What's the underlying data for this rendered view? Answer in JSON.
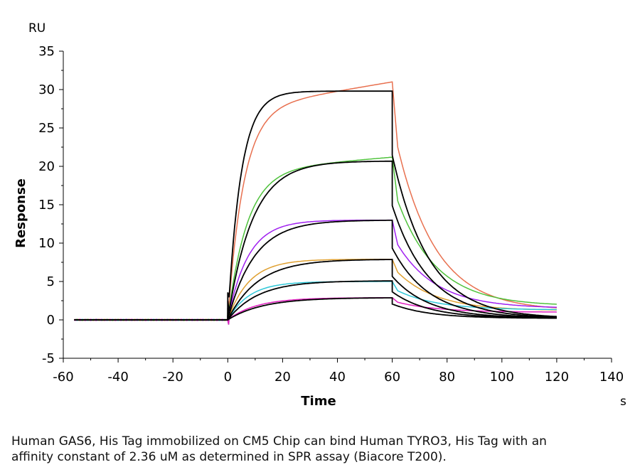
{
  "chart_data": {
    "type": "line",
    "ylabel": "Response",
    "xlabel": "Time",
    "y_unit": "RU",
    "x_unit": "s",
    "xlim": [
      -60,
      140
    ],
    "ylim": [
      -5,
      35
    ],
    "x_ticks": [
      "-60",
      "-40",
      "-20",
      "0",
      "20",
      "40",
      "60",
      "80",
      "100",
      "120",
      "140"
    ],
    "y_ticks": [
      "-5",
      "0",
      "5",
      "10",
      "15",
      "20",
      "25",
      "30",
      "35"
    ],
    "grid": false,
    "series": [
      {
        "color": "#e8704f",
        "plateau": 31.0,
        "dissoc_start": 22.5,
        "dissoc_end": 1.2,
        "ka": 0.11,
        "slope": 0.02
      },
      {
        "color": "#4fc23c",
        "plateau": 21.2,
        "dissoc_start": 15.5,
        "dissoc_end": 1.8,
        "ka": 0.09,
        "slope": 0.01
      },
      {
        "color": "#a020f0",
        "plateau": 13.0,
        "dissoc_start": 9.8,
        "dissoc_end": 1.5,
        "ka": 0.085,
        "slope": 0.0
      },
      {
        "color": "#e0a030",
        "plateau": 7.9,
        "dissoc_start": 6.2,
        "dissoc_end": 1.2,
        "ka": 0.08,
        "slope": 0.0
      },
      {
        "color": "#2fc8d8",
        "plateau": 5.0,
        "dissoc_start": 3.8,
        "dissoc_end": 1.3,
        "ka": 0.08,
        "slope": 0.0
      },
      {
        "color": "#e020c0",
        "plateau": 2.9,
        "dissoc_start": 2.3,
        "dissoc_end": 1.0,
        "ka": 0.06,
        "slope": 0.0
      }
    ],
    "fits": [
      {
        "color": "#000000",
        "plateau": 29.8,
        "rmax_time": 60,
        "dissoc_end": 0.2,
        "ka": 0.16
      },
      {
        "color": "#000000",
        "plateau": 20.7,
        "rmax_time": 60,
        "dissoc_end": 0.2,
        "ka": 0.085
      },
      {
        "color": "#000000",
        "plateau": 13.0,
        "rmax_time": 60,
        "dissoc_end": 0.2,
        "ka": 0.08
      },
      {
        "color": "#000000",
        "plateau": 7.9,
        "rmax_time": 60,
        "dissoc_end": 0.2,
        "ka": 0.07
      },
      {
        "color": "#000000",
        "plateau": 5.1,
        "rmax_time": 60,
        "dissoc_end": 0.2,
        "ka": 0.07
      },
      {
        "color": "#000000",
        "plateau": 2.9,
        "rmax_time": 60,
        "dissoc_end": 0.2,
        "ka": 0.06
      }
    ]
  },
  "caption": {
    "line1": "Human GAS6, His Tag immobilized on CM5 Chip can bind Human TYRO3, His Tag with an",
    "line2": "affinity constant of 2.36 uM as determined in SPR assay (Biacore T200)."
  }
}
